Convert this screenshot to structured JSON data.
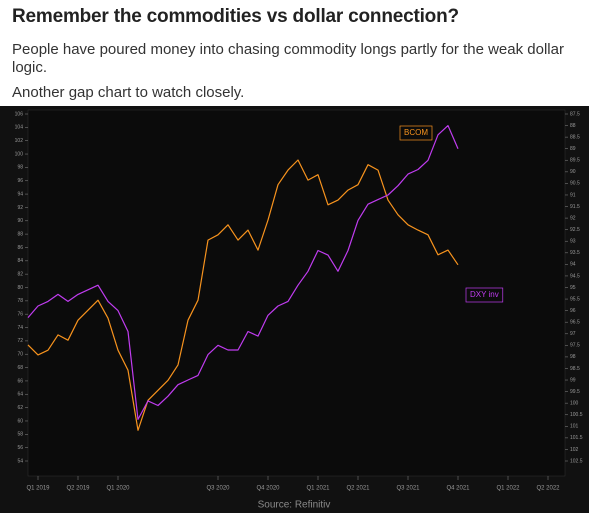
{
  "header": {
    "title": "Remember the commodities vs dollar connection?",
    "subtitle": "People have poured money into chasing commodity longs partly for the weak dollar logic.",
    "note": "Another gap chart to watch closely."
  },
  "chart_data": {
    "type": "line",
    "categories": [
      null,
      "Q1 2019",
      null,
      null,
      null,
      "Q2 2019",
      null,
      null,
      null,
      "Q1 2020",
      null,
      null,
      null,
      null,
      null,
      null,
      null,
      null,
      null,
      "Q3 2020",
      null,
      null,
      null,
      null,
      "Q4 2020",
      null,
      null,
      null,
      null,
      "Q1 2021",
      null,
      null,
      null,
      "Q2 2021",
      null,
      null,
      null,
      null,
      "Q3 2021",
      null,
      null,
      null,
      null,
      "Q4 2021",
      null,
      null,
      null,
      null,
      "Q1 2022",
      null,
      null,
      null,
      "Q2 2022",
      null
    ],
    "series": [
      {
        "name": "BCOM",
        "color": "#f7931e",
        "axis": "y",
        "values": [
          71.4,
          69.9,
          70.6,
          72.9,
          72.1,
          75.1,
          76.6,
          78.1,
          75.4,
          70.6,
          67.6,
          58.6,
          63.1,
          64.6,
          66.1,
          68.4,
          75.1,
          78.1,
          87.1,
          87.9,
          89.4,
          87.1,
          88.6,
          85.6,
          90.1,
          95.4,
          97.6,
          99.1,
          96.1,
          96.9,
          92.4,
          93.1,
          94.6,
          95.4,
          98.4,
          97.6,
          93.1,
          90.9,
          89.4,
          88.6,
          87.9,
          84.9,
          85.6,
          83.4,
          null,
          null,
          null,
          null,
          null,
          null,
          null,
          null,
          null,
          null
        ]
      },
      {
        "name": "DXY inv",
        "color": "#c03cf0",
        "axis": "y2",
        "values": [
          96.3,
          95.8,
          95.6,
          95.3,
          95.6,
          95.3,
          95.1,
          94.9,
          95.6,
          96.0,
          96.9,
          100.7,
          99.9,
          100.1,
          99.7,
          99.2,
          99.0,
          98.8,
          97.9,
          97.5,
          97.7,
          97.7,
          96.9,
          97.1,
          96.2,
          95.8,
          95.6,
          94.9,
          94.3,
          93.4,
          93.6,
          94.3,
          93.4,
          92.1,
          91.4,
          91.2,
          91.0,
          90.6,
          90.1,
          89.9,
          89.5,
          88.4,
          88.0,
          89.0,
          null,
          null,
          null,
          null,
          null,
          null,
          null,
          null,
          null,
          null
        ]
      }
    ],
    "ylim": [
      54,
      106
    ],
    "yticks": [
      54,
      56,
      58,
      60,
      62,
      64,
      66,
      68,
      70,
      72,
      74,
      76,
      78,
      80,
      82,
      84,
      86,
      88,
      90,
      92,
      94,
      96,
      98,
      100,
      102,
      104,
      106
    ],
    "y2lim": [
      102.5,
      87.5
    ],
    "y2ticks": [
      87.5,
      88,
      88.5,
      89,
      89.5,
      90,
      90.5,
      91,
      91.5,
      92,
      92.5,
      93,
      93.5,
      94,
      94.5,
      95,
      95.5,
      96,
      96.5,
      97,
      97.5,
      98,
      98.5,
      99,
      99.5,
      100,
      100.5,
      101,
      101.5,
      102,
      102.5
    ],
    "source": "Source: Refinitiv"
  }
}
